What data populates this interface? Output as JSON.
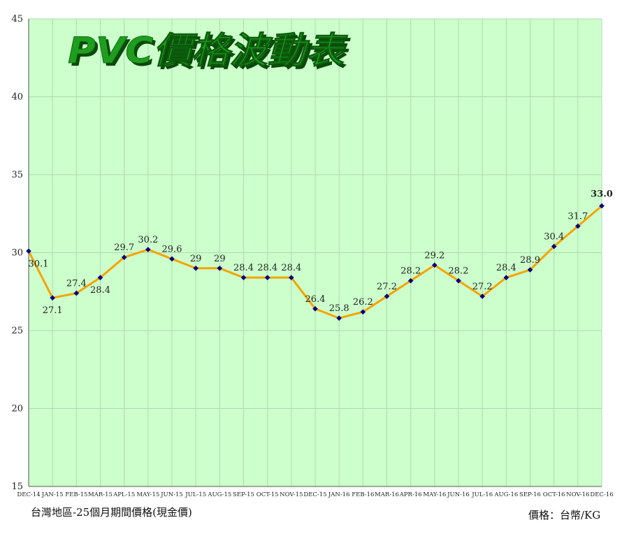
{
  "chart_data": {
    "type": "line",
    "title": "PVC價格波動表",
    "categories": [
      "DEC-14",
      "JAN-15",
      "FEB-15",
      "MAR-15",
      "APL-15",
      "MAY-15",
      "JUN-15",
      "JUL-15",
      "AUG-15",
      "SEP-15",
      "OCT-15",
      "NOV-15",
      "DEC-15",
      "JAN-16",
      "FEB-16",
      "MAR-16",
      "APR-16",
      "MAY-16",
      "JUN-16",
      "JUL-16",
      "AUG-16",
      "SEP-16",
      "OCT-16",
      "NOV-16",
      "DEC-16"
    ],
    "values": [
      30.1,
      27.1,
      27.4,
      28.4,
      29.7,
      30.2,
      29.6,
      29,
      29,
      28.4,
      28.4,
      28.4,
      26.4,
      25.8,
      26.2,
      27.2,
      28.2,
      29.2,
      28.2,
      27.2,
      28.4,
      28.9,
      30.4,
      31.7,
      33.0
    ],
    "value_labels": [
      "30.1",
      "27.1",
      "27.4",
      "28.4",
      "29.7",
      "30.2",
      "29.6",
      "29",
      "29",
      "28.4",
      "28.4",
      "28.4",
      "26.4",
      "25.8",
      "26.2",
      "27.2",
      "28.2",
      "29.2",
      "28.2",
      "27.2",
      "28.4",
      "28.9",
      "30.4",
      "31.7",
      "33.0"
    ],
    "ylim": [
      15,
      45
    ],
    "yticks": [
      15,
      20,
      25,
      30,
      35,
      40,
      45
    ],
    "grid": true,
    "legend": "none",
    "colors": {
      "plot_bg": "#ccffcc",
      "line": "#f5a300",
      "marker": "#000080",
      "grid": "#b0d8b0",
      "title_fill": "#1e9e1e",
      "title_shadow": "#0a4a0a"
    }
  },
  "footer": {
    "left_caption": "台灣地區-25個月期間價格(現金價)",
    "right_caption": "價格：台幣/KG"
  }
}
